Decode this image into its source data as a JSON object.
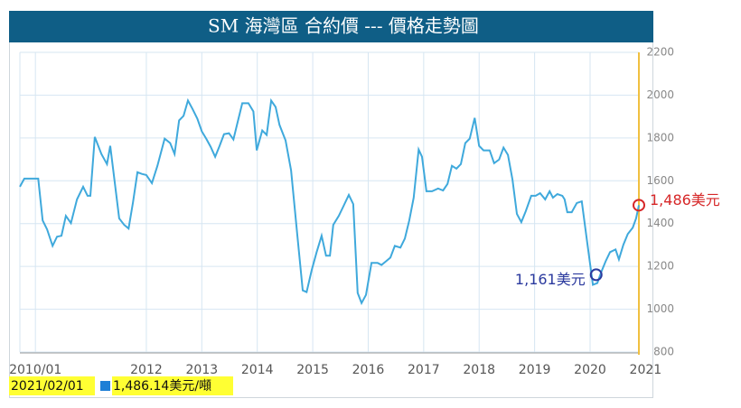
{
  "chart_data": {
    "type": "line",
    "title": "SM 海灣區 合約價 --- 價格走勢圖",
    "x": [
      2009.72,
      2009.8,
      2010.05,
      2010.13,
      2010.21,
      2010.31,
      2010.39,
      2010.47,
      2010.55,
      2010.64,
      2010.75,
      2010.86,
      2010.94,
      2010.99,
      2011.07,
      2011.19,
      2011.29,
      2011.35,
      2011.51,
      2011.6,
      2011.68,
      2011.76,
      2011.84,
      2011.92,
      2012.0,
      2012.1,
      2012.2,
      2012.33,
      2012.43,
      2012.51,
      2012.59,
      2012.67,
      2012.75,
      2012.83,
      2012.92,
      2013.0,
      2013.08,
      2013.16,
      2013.24,
      2013.32,
      2013.4,
      2013.49,
      2013.57,
      2013.65,
      2013.73,
      2013.84,
      2013.93,
      2013.99,
      2014.09,
      2014.17,
      2014.25,
      2014.33,
      2014.4,
      2014.51,
      2014.61,
      2014.72,
      2014.82,
      2014.89,
      2014.98,
      2015.07,
      2015.16,
      2015.24,
      2015.31,
      2015.37,
      2015.47,
      2015.55,
      2015.65,
      2015.73,
      2015.81,
      2015.88,
      2015.96,
      2016.06,
      2016.17,
      2016.24,
      2016.32,
      2016.4,
      2016.48,
      2016.58,
      2016.66,
      2016.74,
      2016.82,
      2016.91,
      2016.97,
      2017.05,
      2017.15,
      2017.26,
      2017.35,
      2017.43,
      2017.51,
      2017.59,
      2017.67,
      2017.75,
      2017.83,
      2017.92,
      2018.0,
      2018.08,
      2018.19,
      2018.27,
      2018.36,
      2018.44,
      2018.52,
      2018.6,
      2018.68,
      2018.76,
      2018.84,
      2018.94,
      2019.02,
      2019.1,
      2019.19,
      2019.27,
      2019.33,
      2019.41,
      2019.5,
      2019.54,
      2019.59,
      2019.67,
      2019.76,
      2019.85,
      2019.95,
      2020.05,
      2020.13,
      2020.2,
      2020.28,
      2020.36,
      2020.46,
      2020.52,
      2020.6,
      2020.68,
      2020.77,
      2020.83,
      2020.88
    ],
    "values": [
      1572,
      1610,
      1610,
      1415,
      1373,
      1296,
      1339,
      1343,
      1436,
      1402,
      1513,
      1572,
      1530,
      1530,
      1805,
      1725,
      1678,
      1763,
      1424,
      1394,
      1377,
      1500,
      1640,
      1632,
      1627,
      1589,
      1670,
      1797,
      1776,
      1725,
      1882,
      1903,
      1975,
      1937,
      1890,
      1831,
      1797,
      1759,
      1712,
      1763,
      1818,
      1822,
      1793,
      1878,
      1962,
      1962,
      1924,
      1742,
      1835,
      1814,
      1975,
      1945,
      1861,
      1789,
      1649,
      1351,
      1088,
      1080,
      1182,
      1267,
      1343,
      1250,
      1250,
      1394,
      1436,
      1479,
      1534,
      1491,
      1076,
      1029,
      1067,
      1216,
      1216,
      1207,
      1224,
      1241,
      1296,
      1288,
      1330,
      1415,
      1521,
      1746,
      1712,
      1551,
      1551,
      1564,
      1555,
      1585,
      1670,
      1657,
      1678,
      1776,
      1797,
      1894,
      1763,
      1742,
      1742,
      1682,
      1699,
      1755,
      1721,
      1606,
      1445,
      1407,
      1458,
      1530,
      1530,
      1542,
      1513,
      1551,
      1521,
      1538,
      1530,
      1513,
      1453,
      1453,
      1496,
      1504,
      1309,
      1114,
      1122,
      1173,
      1224,
      1267,
      1279,
      1233,
      1301,
      1351,
      1381,
      1424,
      1486
    ],
    "color": "#3fa9dc",
    "xlim": [
      2009.72,
      2020.88
    ],
    "xticks": [
      {
        "value": 2010,
        "label": "2010/01"
      },
      2012,
      2013,
      2014,
      2015,
      2016,
      2017,
      2018,
      2019,
      2020,
      2021
    ],
    "ylim": [
      800,
      2200
    ],
    "yticks": [
      800,
      1000,
      1200,
      1400,
      1600,
      1800,
      2000,
      2200
    ],
    "grid": true,
    "annotations": [
      {
        "label": "1,486美元",
        "x": 2020.88,
        "value": 1486,
        "color": "#d62728"
      },
      {
        "label": "1,161美元",
        "x": 2020.11,
        "value": 1161,
        "color": "#2b3a9e"
      }
    ],
    "footer_date": "2021/02/01",
    "footer_value": "1,486.14美元/噸"
  }
}
